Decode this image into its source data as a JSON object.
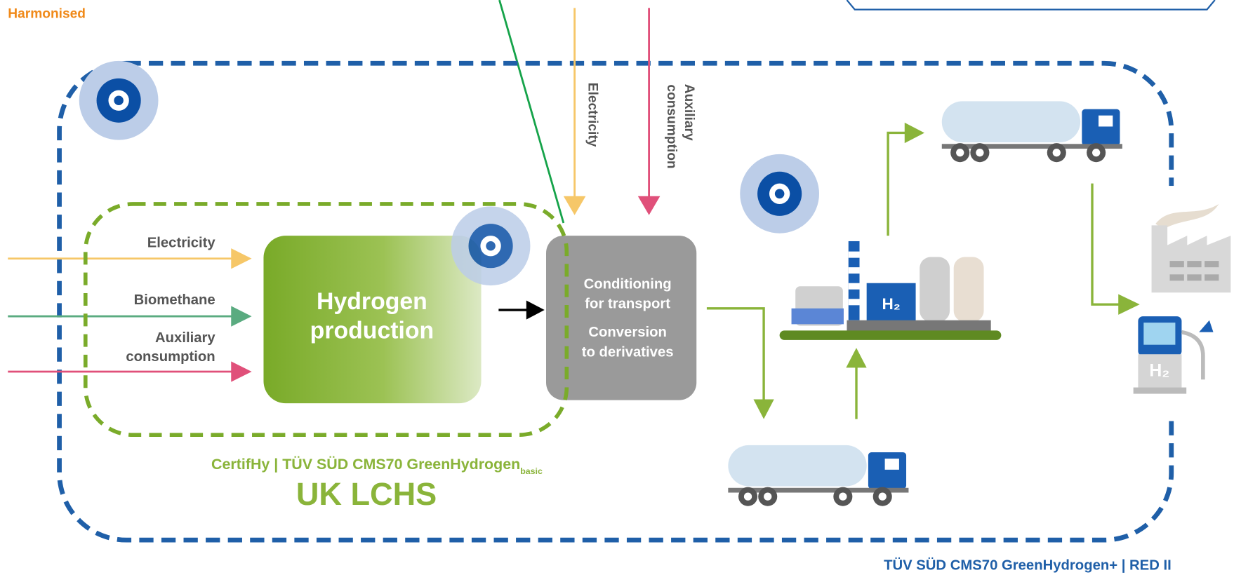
{
  "header": {
    "label": "Harmonised"
  },
  "inputs": [
    {
      "lines": [
        "Electricity"
      ]
    },
    {
      "lines": [
        "Biomethane"
      ]
    },
    {
      "lines": [
        "Auxiliary",
        "consumption"
      ]
    }
  ],
  "top_inputs": [
    {
      "lines": [
        "Electricity"
      ]
    },
    {
      "lines": [
        "Auxiliary",
        "consumption"
      ]
    }
  ],
  "nodes": [
    {
      "lines": [
        "Hydrogen",
        "production"
      ]
    },
    {
      "lines": [
        "Conditioning",
        "for transport",
        "Conversion",
        "to derivatives"
      ]
    }
  ],
  "plant_label": "H₂",
  "pump_label": "H₂",
  "schemes": {
    "inner": {
      "label": "CertifHy | TÜV SÜD CMS70 GreenHydrogen",
      "subscript": "basic",
      "name": "UK LCHS"
    },
    "outer": {
      "label": "TÜV SÜD CMS70 GreenHydrogen+ | RED II"
    }
  }
}
